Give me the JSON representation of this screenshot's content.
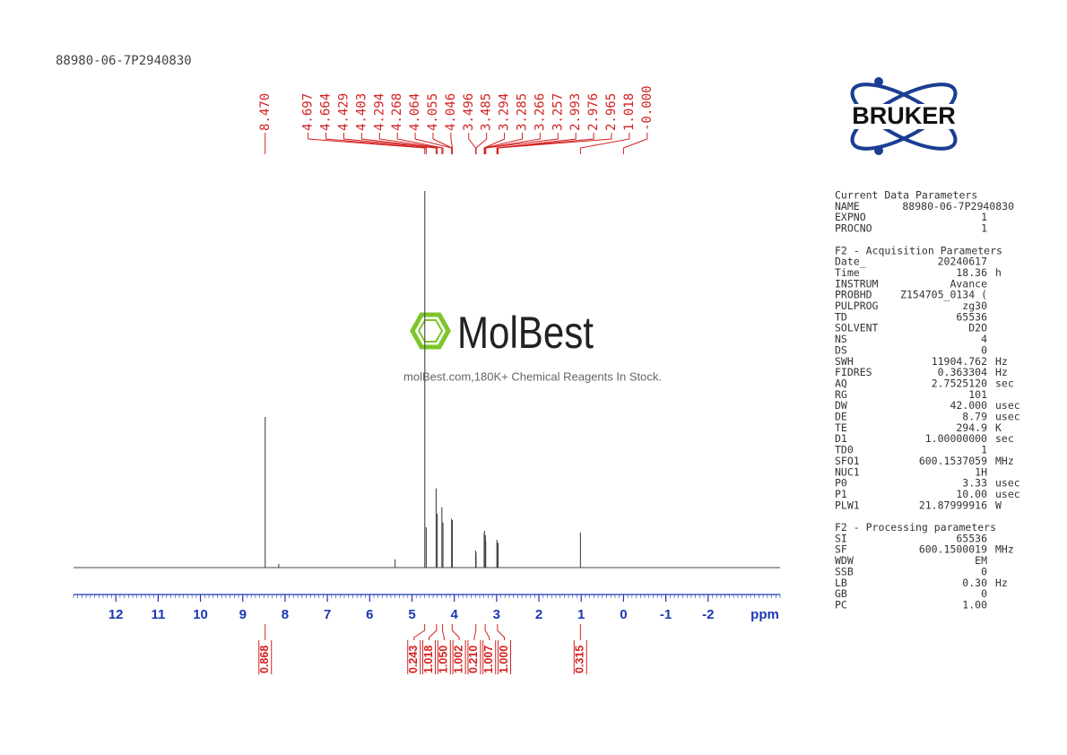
{
  "chart_data": {
    "type": "nmr",
    "title": "88980-06-7P2940830",
    "xlabel": "ppm",
    "xlim": [
      13,
      -3.7
    ],
    "xticks": [
      12,
      11,
      10,
      9,
      8,
      7,
      6,
      5,
      4,
      3,
      2,
      1,
      0,
      -1,
      -2
    ],
    "xminor": 0.1,
    "ylim": [
      0,
      100
    ],
    "axis_color": "#1c37b5",
    "trace_color": "#444444",
    "label_color": "#d42020",
    "peaks": {
      "ppm": [
        8.47,
        4.697,
        4.664,
        4.429,
        4.403,
        4.294,
        4.268,
        4.064,
        4.055,
        4.046,
        3.496,
        3.485,
        3.294,
        3.285,
        3.266,
        3.257,
        2.993,
        2.976,
        2.965,
        1.018,
        0
      ],
      "labels": [
        "8.470",
        "4.697",
        "4.664",
        "4.429",
        "4.403",
        "4.294",
        "4.268",
        "4.064",
        "4.055",
        "4.046",
        "3.496",
        "3.485",
        "3.294",
        "3.285",
        "3.266",
        "3.257",
        "2.993",
        "2.976",
        "2.965",
        "1.018",
        "-0.000"
      ],
      "intensity": [
        40,
        100,
        10.7,
        21,
        14.3,
        16,
        12,
        13,
        8,
        12.6,
        4.5,
        4,
        9,
        9.8,
        8.6,
        7,
        7.4,
        6.7,
        6.4,
        9.3,
        null
      ]
    },
    "other_peaks": {
      "ppm": [
        8.15,
        5.4
      ],
      "intensity": [
        1,
        2.2
      ]
    },
    "integrals": {
      "ppm": [
        8.47,
        4.7,
        4.42,
        4.28,
        4.05,
        3.49,
        3.27,
        2.98,
        1.02
      ],
      "values": [
        0.868,
        0.243,
        1.018,
        1.05,
        1.002,
        0.21,
        1.007,
        1,
        0.315
      ],
      "value_labels": [
        "0.868",
        "0.243",
        "1.018",
        "1.050",
        "1.002",
        "0.210",
        "1.007",
        "1.000",
        "0.315"
      ]
    }
  },
  "watermark": {
    "name": "MolBest",
    "tagline": "molBest.com,180K+ Chemical Reagents In Stock."
  },
  "logo": "BRUKER",
  "parameters": [
    {
      "title": "Current Data Parameters",
      "rows": [
        [
          "NAME",
          "88980-06-7P2940830"
        ],
        [
          "EXPNO",
          "1"
        ],
        [
          "PROCNO",
          "1"
        ]
      ]
    },
    {
      "title": "F2 - Acquisition Parameters",
      "rows": [
        [
          "Date_",
          "20240617"
        ],
        [
          "Time",
          "18.36",
          "h"
        ],
        [
          "INSTRUM",
          "Avance"
        ],
        [
          "PROBHD",
          "Z154705_0134 ("
        ],
        [
          "PULPROG",
          "zg30"
        ],
        [
          "TD",
          "65536"
        ],
        [
          "SOLVENT",
          "D2O"
        ],
        [
          "NS",
          "4"
        ],
        [
          "DS",
          "0"
        ],
        [
          "SWH",
          "11904.762",
          "Hz"
        ],
        [
          "FIDRES",
          "0.363304",
          "Hz"
        ],
        [
          "AQ",
          "2.7525120",
          "sec"
        ],
        [
          "RG",
          "101"
        ],
        [
          "DW",
          "42.000",
          "usec"
        ],
        [
          "DE",
          "8.79",
          "usec"
        ],
        [
          "TE",
          "294.9",
          "K"
        ],
        [
          "D1",
          "1.00000000",
          "sec"
        ],
        [
          "TD0",
          "1"
        ],
        [
          "SFO1",
          "600.1537059",
          "MHz"
        ],
        [
          "NUC1",
          "1H"
        ],
        [
          "P0",
          "3.33",
          "usec"
        ],
        [
          "P1",
          "10.00",
          "usec"
        ],
        [
          "PLW1",
          "21.87999916",
          "W"
        ]
      ]
    },
    {
      "title": "F2 - Processing parameters",
      "rows": [
        [
          "SI",
          "65536"
        ],
        [
          "SF",
          "600.1500019",
          "MHz"
        ],
        [
          "WDW",
          "EM"
        ],
        [
          "SSB",
          "0"
        ],
        [
          "LB",
          "0.30",
          "Hz"
        ],
        [
          "GB",
          "0"
        ],
        [
          "PC",
          "1.00"
        ]
      ]
    }
  ]
}
